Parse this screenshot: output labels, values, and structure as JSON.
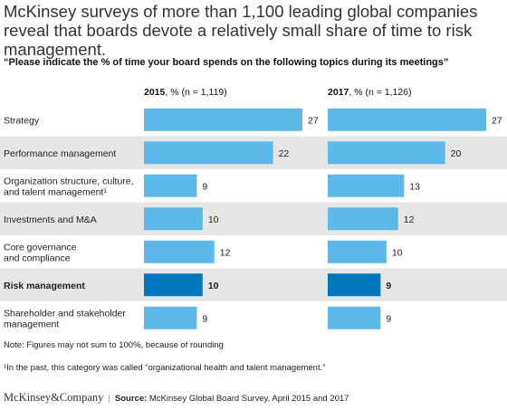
{
  "title": "McKinsey surveys of more than 1,100 leading global companies reveal that boards devote a relatively small share of time to risk management.",
  "question": "“Please indicate the % of time your board spends on the following topics during its meetings”",
  "colors": {
    "bar": "#5cb8e8",
    "highlight_bar": "#0076bf",
    "shaded_row": "#e6e6e6",
    "text": "#222222"
  },
  "chart_data": {
    "type": "bar",
    "orientation": "horizontal",
    "categories": [
      "Strategy",
      "Performance management",
      "Organization structure, culture, and talent management¹",
      "Investments and M&A",
      "Core governance and compliance",
      "Risk management",
      "Shareholder and stakeholder management"
    ],
    "category_lines": [
      [
        "Strategy"
      ],
      [
        "Performance management"
      ],
      [
        "Organization structure, culture,",
        "and talent management¹"
      ],
      [
        "Investments and M&A"
      ],
      [
        "Core governance",
        "and compliance"
      ],
      [
        "Risk management"
      ],
      [
        "Shareholder and stakeholder",
        "management"
      ]
    ],
    "highlight_category": "Risk management",
    "series": [
      {
        "name": "2015",
        "header_year": "2015",
        "header_rest": ", % (n = 1,119)",
        "values": [
          27,
          22,
          9,
          10,
          12,
          10,
          9
        ]
      },
      {
        "name": "2017",
        "header_year": "2017",
        "header_rest": ", % (n = 1,126)",
        "values": [
          27,
          20,
          13,
          12,
          10,
          9,
          9
        ]
      }
    ],
    "xlim": [
      0,
      27
    ],
    "grid": false,
    "legend": "none"
  },
  "notes": {
    "rounding": "Note: Figures may not sum to 100%, because of rounding",
    "footnote": "¹In the past, this category was called “organizational health and talent management.”"
  },
  "footer": {
    "brand": "McKinsey&Company",
    "separator": "|",
    "source_label": "Source:",
    "source_text": " McKinsey Global Board Survey, April 2015 and 2017"
  }
}
